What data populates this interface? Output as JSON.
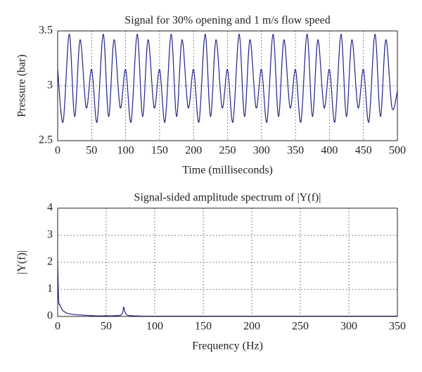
{
  "chart_data": [
    {
      "type": "line",
      "title": "Signal for 30% opening and 1 m/s flow speed",
      "xlabel": "Time (milliseconds)",
      "ylabel": "Pressure (bar)",
      "xlim": [
        0,
        500
      ],
      "ylim": [
        2.5,
        3.5
      ],
      "xticks": [
        0,
        50,
        100,
        150,
        200,
        250,
        300,
        350,
        400,
        450,
        500
      ],
      "yticks": [
        2.5,
        3,
        3.5
      ],
      "grid": true,
      "x": [
        0,
        8,
        17,
        25,
        33,
        42,
        50,
        58,
        67,
        75,
        83,
        92,
        100,
        108,
        117,
        125,
        133,
        142,
        150,
        158,
        167,
        175,
        183,
        192,
        200,
        208,
        217,
        225,
        233,
        242,
        250,
        258,
        267,
        275,
        283,
        292,
        300,
        308,
        317,
        325,
        333,
        342,
        350,
        358,
        367,
        375,
        383,
        392,
        400,
        408,
        417,
        425,
        433,
        442,
        450,
        458,
        467,
        475,
        483,
        492,
        500
      ],
      "series": [
        {
          "color": "#23238e",
          "values": [
            3.15,
            2.67,
            3.47,
            2.72,
            3.42,
            2.8,
            3.15,
            2.67,
            3.47,
            2.72,
            3.42,
            2.8,
            3.15,
            2.67,
            3.47,
            2.72,
            3.42,
            2.8,
            3.15,
            2.67,
            3.47,
            2.72,
            3.42,
            2.8,
            3.15,
            2.67,
            3.47,
            2.72,
            3.42,
            2.8,
            3.15,
            2.67,
            3.47,
            2.72,
            3.42,
            2.8,
            3.15,
            2.67,
            3.47,
            2.72,
            3.42,
            2.8,
            3.15,
            2.67,
            3.47,
            2.72,
            3.42,
            2.8,
            3.15,
            2.67,
            3.47,
            2.72,
            3.42,
            2.8,
            3.15,
            2.67,
            3.47,
            2.72,
            3.42,
            2.8,
            2.95
          ]
        }
      ]
    },
    {
      "type": "line",
      "title": "Signal-sided amplitude spectrum of |Y(f)|",
      "xlabel": "Frequency (Hz)",
      "ylabel": "|Y(f)|",
      "xlim": [
        0,
        350
      ],
      "ylim": [
        0,
        4
      ],
      "xticks": [
        0,
        50,
        100,
        150,
        200,
        250,
        300,
        350
      ],
      "yticks": [
        0,
        1,
        2,
        3,
        4
      ],
      "grid": true,
      "x": [
        0,
        1,
        2,
        3,
        4,
        5,
        6,
        8,
        10,
        12,
        15,
        18,
        20,
        25,
        30,
        35,
        40,
        45,
        50,
        55,
        60,
        65,
        67,
        68,
        69,
        71,
        75,
        80,
        90,
        100,
        150,
        200,
        250,
        300,
        350
      ],
      "series": [
        {
          "color": "#23238e",
          "values": [
            2.0,
            0.6,
            0.45,
            0.35,
            0.3,
            0.22,
            0.2,
            0.15,
            0.12,
            0.1,
            0.08,
            0.07,
            0.06,
            0.05,
            0.04,
            0.03,
            0.02,
            0.02,
            0.03,
            0.02,
            0.03,
            0.05,
            0.15,
            0.35,
            0.2,
            0.06,
            0.03,
            0.02,
            0.01,
            0.01,
            0.01,
            0.01,
            0.01,
            0.01,
            0.01
          ]
        }
      ]
    }
  ]
}
